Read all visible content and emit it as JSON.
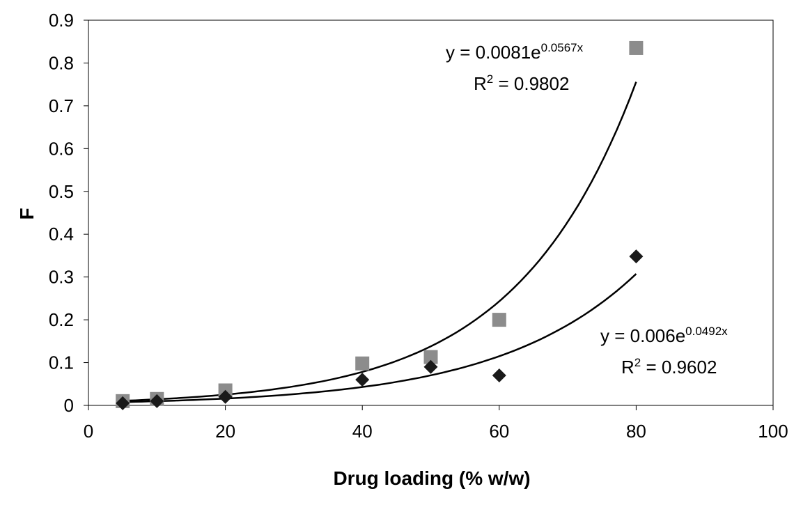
{
  "chart_data": {
    "type": "scatter",
    "title": "",
    "xlabel": "Drug loading (% w/w)",
    "ylabel": "F",
    "xlim": [
      0,
      100
    ],
    "ylim": [
      0,
      0.9
    ],
    "x_ticks": [
      0,
      20,
      40,
      60,
      80,
      100
    ],
    "x_tick_labels": [
      "0",
      "20",
      "40",
      "60",
      "80",
      "100"
    ],
    "y_ticks": [
      0,
      0.1,
      0.2,
      0.3,
      0.4,
      0.5,
      0.6,
      0.7,
      0.8,
      0.9
    ],
    "y_tick_labels": [
      "0",
      "0.1",
      "0.2",
      "0.3",
      "0.4",
      "0.5",
      "0.6",
      "0.7",
      "0.8",
      "0.9"
    ],
    "grid": false,
    "series": [
      {
        "name": "squares",
        "marker": "square",
        "color": "#8c8c8c",
        "x": [
          5,
          10,
          20,
          40,
          50,
          60,
          80
        ],
        "y": [
          0.01,
          0.015,
          0.035,
          0.098,
          0.113,
          0.2,
          0.835
        ],
        "fit": {
          "a": 0.0081,
          "b": 0.0567,
          "x_range": [
            5,
            80
          ]
        },
        "equation": {
          "prefix": "y = 0.0081e",
          "exponent": "0.0567x",
          "r2_prefix": "R",
          "r2_power": "2",
          "r2_value": " = 0.9802"
        }
      },
      {
        "name": "diamonds",
        "marker": "diamond",
        "color": "#1a1a1a",
        "x": [
          5,
          10,
          20,
          40,
          50,
          60,
          80
        ],
        "y": [
          0.005,
          0.01,
          0.02,
          0.06,
          0.09,
          0.07,
          0.348
        ],
        "fit": {
          "a": 0.006,
          "b": 0.0492,
          "x_range": [
            5,
            80
          ]
        },
        "equation": {
          "prefix": "y = 0.006e",
          "exponent": "0.0492x",
          "r2_prefix": "R",
          "r2_power": "2",
          "r2_value": " = 0.9602"
        }
      }
    ]
  }
}
